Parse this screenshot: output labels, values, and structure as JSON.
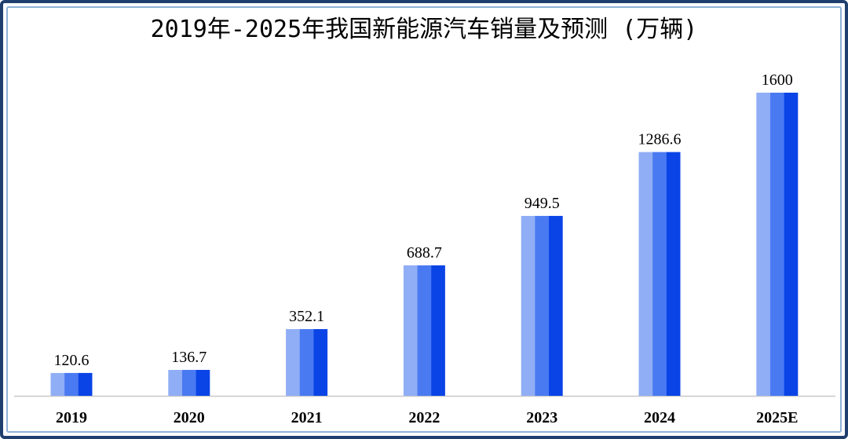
{
  "chart_data": {
    "type": "bar",
    "title": "2019年-2025年我国新能源汽车销量及预测 (万辆)",
    "categories": [
      "2019",
      "2020",
      "2021",
      "2022",
      "2023",
      "2024",
      "2025E"
    ],
    "values": [
      120.6,
      136.7,
      352.1,
      688.7,
      949.5,
      1286.6,
      1600
    ],
    "value_labels": [
      "120.6",
      "136.7",
      "352.1",
      "688.7",
      "949.5",
      "1286.6",
      "1600"
    ],
    "xlabel": "",
    "ylabel": "",
    "ylim": [
      0,
      1600
    ],
    "grid": false,
    "legend": "none",
    "colors": {
      "bar_light": "#90aef5",
      "bar_mid": "#4a7af2",
      "bar_dark": "#0a44e6",
      "frame": "#1f3f6e",
      "axis": "#c8c8c8"
    }
  }
}
